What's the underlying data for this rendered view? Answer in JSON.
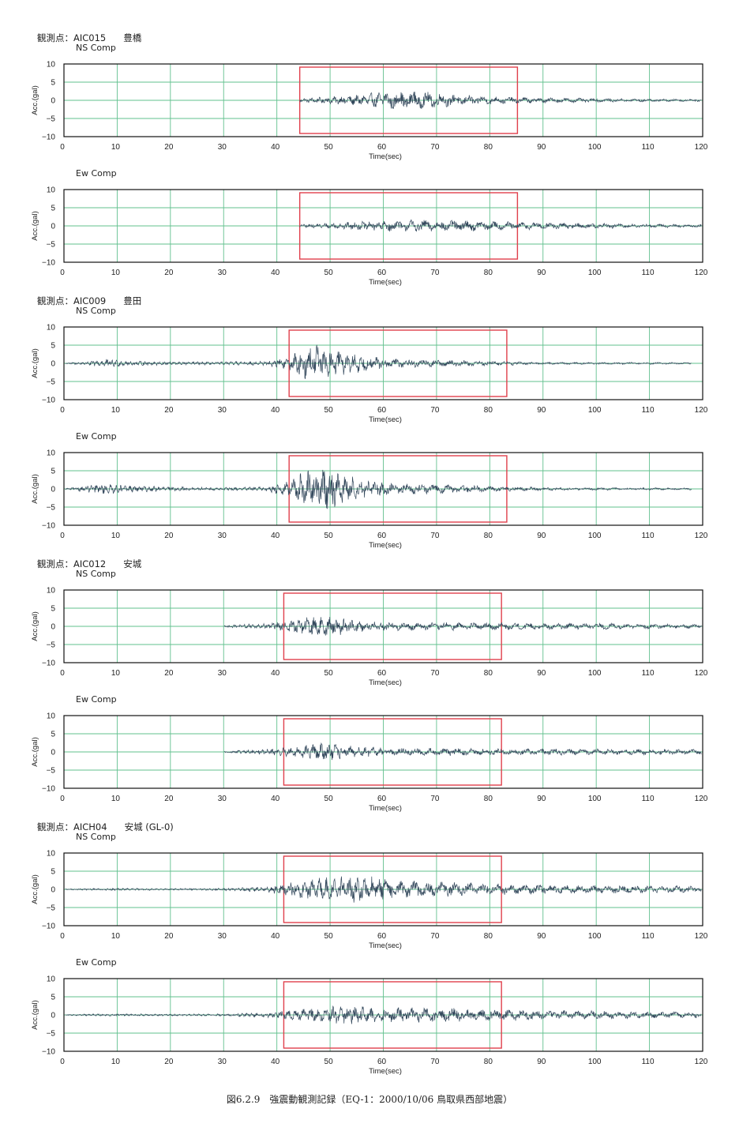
{
  "caption": "図6.2.9　強震動観測記録（EQ-1：2000/10/06 鳥取県西部地震）",
  "station_prefix": "観測点：",
  "colors": {
    "grid": "#62c08e",
    "box": "#e0404c",
    "trace": "#33485c",
    "frame": "#111111"
  },
  "chart_data": [
    {
      "type": "line",
      "station_code": "AIC015",
      "station_name": "豊橋",
      "component": "NS Comp",
      "xlabel": "Time(sec)",
      "ylabel": "Acc.(gal)",
      "xlim": [
        0,
        120
      ],
      "ylim": [
        -10,
        10
      ],
      "xticks": [
        0,
        10,
        20,
        30,
        40,
        50,
        60,
        70,
        80,
        90,
        100,
        110,
        120
      ],
      "yticks": [
        10,
        5,
        0,
        -5,
        -10
      ],
      "grid": true,
      "highlight_window": [
        44.3,
        85.2
      ],
      "record_window": [
        44.3,
        119.8
      ],
      "peak_time": 61,
      "amplitude_envelope": [
        [
          44.3,
          0.6
        ],
        [
          50,
          1.2
        ],
        [
          55,
          1.8
        ],
        [
          61,
          3.0
        ],
        [
          66,
          3.0
        ],
        [
          70,
          2.5
        ],
        [
          75,
          1.8
        ],
        [
          80,
          1.3
        ],
        [
          85,
          1.0
        ],
        [
          90,
          0.9
        ],
        [
          100,
          0.6
        ],
        [
          110,
          0.5
        ],
        [
          119.8,
          0.4
        ]
      ]
    },
    {
      "type": "line",
      "station_code": "AIC015",
      "station_name": "豊橋",
      "component": "Ew Comp",
      "xlabel": "Time(sec)",
      "ylabel": "Acc.(gal)",
      "xlim": [
        0,
        120
      ],
      "ylim": [
        -10,
        10
      ],
      "xticks": [
        0,
        10,
        20,
        30,
        40,
        50,
        60,
        70,
        80,
        90,
        100,
        110,
        120
      ],
      "yticks": [
        10,
        5,
        0,
        -5,
        -10
      ],
      "grid": true,
      "highlight_window": [
        44.3,
        85.2
      ],
      "record_window": [
        44.3,
        119.8
      ],
      "peak_time": 66,
      "amplitude_envelope": [
        [
          44.3,
          0.5
        ],
        [
          50,
          1.0
        ],
        [
          55,
          1.4
        ],
        [
          60,
          1.8
        ],
        [
          65,
          2.0
        ],
        [
          70,
          1.9
        ],
        [
          75,
          1.8
        ],
        [
          80,
          1.5
        ],
        [
          85,
          1.3
        ],
        [
          95,
          1.0
        ],
        [
          110,
          0.6
        ],
        [
          119.8,
          0.5
        ]
      ]
    },
    {
      "type": "line",
      "station_code": "AIC009",
      "station_name": "豊田",
      "component": "NS Comp",
      "xlabel": "Time(sec)",
      "ylabel": "Acc.(gal)",
      "xlim": [
        0,
        120
      ],
      "ylim": [
        -10,
        10
      ],
      "xticks": [
        0,
        10,
        20,
        30,
        40,
        50,
        60,
        70,
        80,
        90,
        100,
        110,
        120
      ],
      "yticks": [
        10,
        5,
        0,
        -5,
        -10
      ],
      "grid": true,
      "highlight_window": [
        42.3,
        83.2
      ],
      "record_window": [
        0.3,
        117.9
      ],
      "peak_time": 49,
      "amplitude_envelope": [
        [
          0.3,
          0.2
        ],
        [
          5,
          0.8
        ],
        [
          8,
          1.5
        ],
        [
          12,
          0.8
        ],
        [
          20,
          0.6
        ],
        [
          30,
          0.5
        ],
        [
          38,
          0.8
        ],
        [
          42,
          2.0
        ],
        [
          45,
          5.0
        ],
        [
          48,
          6.5
        ],
        [
          50,
          5.0
        ],
        [
          53,
          4.0
        ],
        [
          57,
          2.5
        ],
        [
          62,
          1.5
        ],
        [
          70,
          1.2
        ],
        [
          80,
          0.8
        ],
        [
          90,
          0.4
        ],
        [
          117.9,
          0.3
        ]
      ]
    },
    {
      "type": "line",
      "station_code": "AIC009",
      "station_name": "豊田",
      "component": "Ew Comp",
      "xlabel": "Time(sec)",
      "ylabel": "Acc.(gal)",
      "xlim": [
        0,
        120
      ],
      "ylim": [
        -10,
        10
      ],
      "xticks": [
        0,
        10,
        20,
        30,
        40,
        50,
        60,
        70,
        80,
        90,
        100,
        110,
        120
      ],
      "yticks": [
        10,
        5,
        0,
        -5,
        -10
      ],
      "grid": true,
      "highlight_window": [
        42.3,
        83.2
      ],
      "record_window": [
        0.3,
        117.9
      ],
      "peak_time": 49,
      "amplitude_envelope": [
        [
          0.3,
          0.2
        ],
        [
          4,
          1.0
        ],
        [
          7,
          1.8
        ],
        [
          11,
          1.2
        ],
        [
          20,
          0.7
        ],
        [
          30,
          0.5
        ],
        [
          38,
          0.7
        ],
        [
          42,
          2.5
        ],
        [
          45,
          5.5
        ],
        [
          49,
          7.5
        ],
        [
          52,
          5.0
        ],
        [
          56,
          3.0
        ],
        [
          62,
          1.8
        ],
        [
          70,
          1.5
        ],
        [
          80,
          1.0
        ],
        [
          90,
          0.5
        ],
        [
          117.9,
          0.3
        ]
      ]
    },
    {
      "type": "line",
      "station_code": "AIC012",
      "station_name": "安城",
      "component": "NS Comp",
      "xlabel": "Time(sec)",
      "ylabel": "Acc.(gal)",
      "xlim": [
        0,
        120
      ],
      "ylim": [
        -10,
        10
      ],
      "xticks": [
        0,
        10,
        20,
        30,
        40,
        50,
        60,
        70,
        80,
        90,
        100,
        110,
        120
      ],
      "yticks": [
        10,
        5,
        0,
        -5,
        -10
      ],
      "grid": true,
      "highlight_window": [
        41.3,
        82.2
      ],
      "record_window": [
        30.1,
        119.8
      ],
      "peak_time": 48,
      "amplitude_envelope": [
        [
          30.1,
          0.4
        ],
        [
          35,
          0.8
        ],
        [
          40,
          1.3
        ],
        [
          44,
          2.5
        ],
        [
          48,
          3.5
        ],
        [
          52,
          2.8
        ],
        [
          56,
          1.8
        ],
        [
          60,
          1.4
        ],
        [
          70,
          1.3
        ],
        [
          80,
          1.2
        ],
        [
          90,
          1.1
        ],
        [
          100,
          1.0
        ],
        [
          110,
          0.8
        ],
        [
          119.8,
          0.6
        ]
      ]
    },
    {
      "type": "line",
      "station_code": "AIC012",
      "station_name": "安城",
      "component": "Ew Comp",
      "xlabel": "Time(sec)",
      "ylabel": "Acc.(gal)",
      "xlim": [
        0,
        120
      ],
      "ylim": [
        -10,
        10
      ],
      "xticks": [
        0,
        10,
        20,
        30,
        40,
        50,
        60,
        70,
        80,
        90,
        100,
        110,
        120
      ],
      "yticks": [
        10,
        5,
        0,
        -5,
        -10
      ],
      "grid": true,
      "highlight_window": [
        41.3,
        82.2
      ],
      "record_window": [
        30.1,
        119.8
      ],
      "peak_time": 49,
      "amplitude_envelope": [
        [
          30.1,
          0.4
        ],
        [
          35,
          0.7
        ],
        [
          40,
          1.2
        ],
        [
          45,
          2.2
        ],
        [
          49,
          3.3
        ],
        [
          53,
          2.0
        ],
        [
          58,
          1.5
        ],
        [
          65,
          1.3
        ],
        [
          75,
          1.2
        ],
        [
          85,
          1.0
        ],
        [
          95,
          1.1
        ],
        [
          105,
          1.0
        ],
        [
          119.8,
          0.8
        ]
      ]
    },
    {
      "type": "line",
      "station_code": "AICH04",
      "station_name": "安城 (GL-0)",
      "component": "NS Comp",
      "xlabel": "Time(sec)",
      "ylabel": "Acc.(gal)",
      "xlim": [
        0,
        120
      ],
      "ylim": [
        -10,
        10
      ],
      "xticks": [
        0,
        10,
        20,
        30,
        40,
        50,
        60,
        70,
        80,
        90,
        100,
        110,
        120
      ],
      "yticks": [
        10,
        5,
        0,
        -5,
        -10
      ],
      "grid": true,
      "highlight_window": [
        41.3,
        82.2
      ],
      "record_window": [
        0.3,
        119.8
      ],
      "peak_time": 55,
      "amplitude_envelope": [
        [
          0.3,
          0.2
        ],
        [
          10,
          0.4
        ],
        [
          20,
          0.3
        ],
        [
          30,
          0.4
        ],
        [
          38,
          0.8
        ],
        [
          42,
          2.5
        ],
        [
          47,
          3.5
        ],
        [
          52,
          4.5
        ],
        [
          56,
          4.5
        ],
        [
          60,
          3.5
        ],
        [
          65,
          2.8
        ],
        [
          70,
          2.5
        ],
        [
          80,
          2.0
        ],
        [
          90,
          1.5
        ],
        [
          100,
          1.3
        ],
        [
          110,
          1.2
        ],
        [
          119.8,
          1.0
        ]
      ]
    },
    {
      "type": "line",
      "station_code": "AICH04",
      "station_name": "安城 (GL-0)",
      "component": "Ew Comp",
      "xlabel": "Time(sec)",
      "ylabel": "Acc.(gal)",
      "xlim": [
        0,
        120
      ],
      "ylim": [
        -10,
        10
      ],
      "xticks": [
        0,
        10,
        20,
        30,
        40,
        50,
        60,
        70,
        80,
        90,
        100,
        110,
        120
      ],
      "yticks": [
        10,
        5,
        0,
        -5,
        -10
      ],
      "grid": true,
      "highlight_window": [
        41.3,
        82.2
      ],
      "record_window": [
        0.3,
        119.8
      ],
      "peak_time": 53,
      "amplitude_envelope": [
        [
          0.3,
          0.2
        ],
        [
          10,
          0.4
        ],
        [
          20,
          0.3
        ],
        [
          30,
          0.4
        ],
        [
          38,
          0.8
        ],
        [
          42,
          1.5
        ],
        [
          47,
          2.2
        ],
        [
          52,
          3.2
        ],
        [
          56,
          2.8
        ],
        [
          60,
          2.5
        ],
        [
          66,
          2.5
        ],
        [
          72,
          2.2
        ],
        [
          80,
          2.0
        ],
        [
          90,
          1.6
        ],
        [
          100,
          1.3
        ],
        [
          110,
          1.1
        ],
        [
          119.8,
          1.0
        ]
      ]
    }
  ]
}
